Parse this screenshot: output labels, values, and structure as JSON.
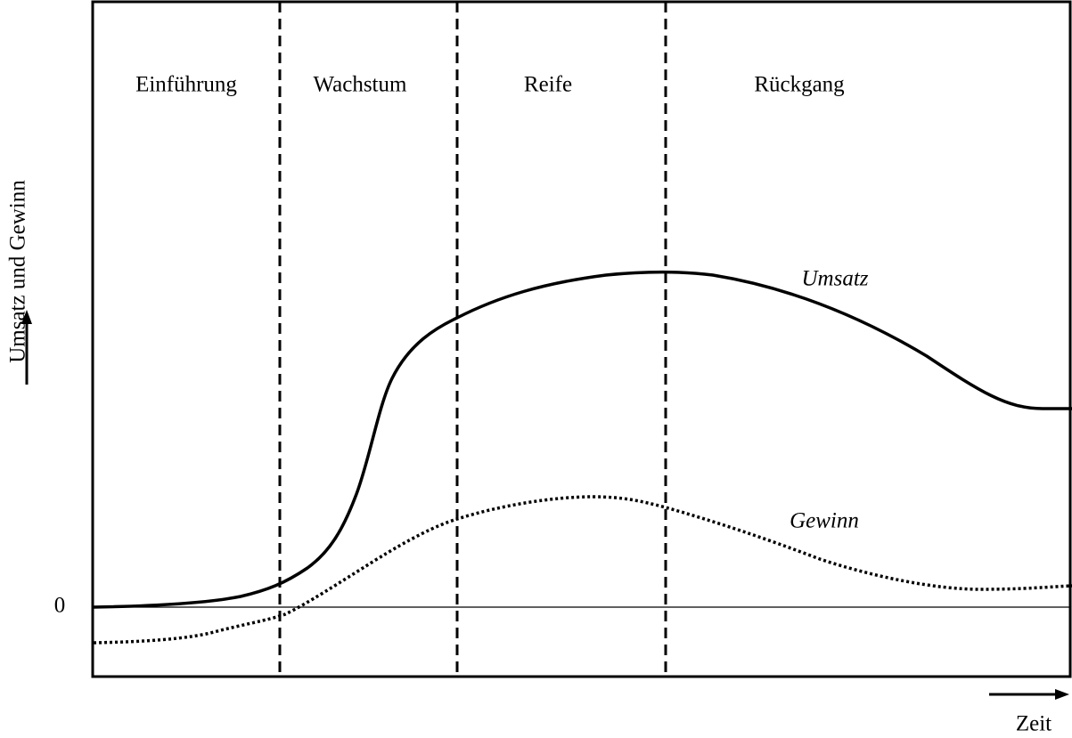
{
  "phases": [
    "Einführung",
    "Wachstum",
    "Reife",
    "Rückgang"
  ],
  "curves": {
    "sales": "Umsatz",
    "profit": "Gewinn"
  },
  "y_axis": {
    "label": "Umsatz und Gewinn",
    "zero": "0"
  },
  "x_axis": {
    "label": "Zeit"
  }
}
